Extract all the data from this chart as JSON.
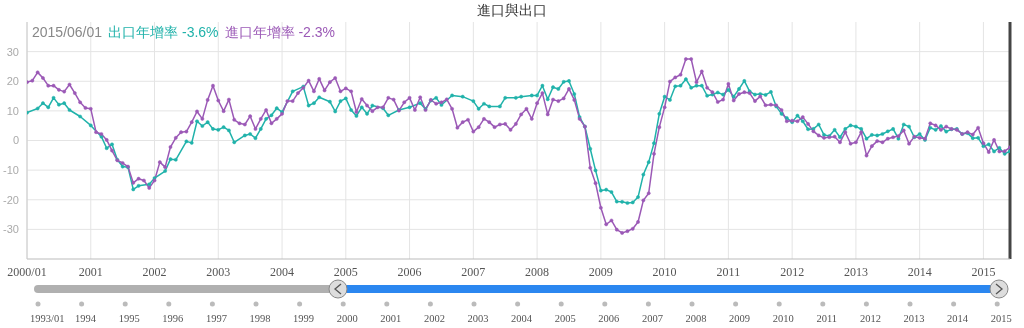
{
  "chart_data": {
    "type": "line",
    "title": "進口與出口",
    "legend_title": "2015/06/01",
    "legend": "top left",
    "grid": true,
    "marker": "circle",
    "line_style": "solid",
    "xlim": [
      "2000-01",
      "2015-06"
    ],
    "xticks": [
      {
        "value": "2000-01",
        "label": "2000/01"
      },
      {
        "value": "2001-01",
        "label": "2001"
      },
      {
        "value": "2002-01",
        "label": "2002"
      },
      {
        "value": "2003-01",
        "label": "2003"
      },
      {
        "value": "2004-01",
        "label": "2004"
      },
      {
        "value": "2005-01",
        "label": "2005"
      },
      {
        "value": "2006-01",
        "label": "2006"
      },
      {
        "value": "2007-01",
        "label": "2007"
      },
      {
        "value": "2008-01",
        "label": "2008"
      },
      {
        "value": "2009-01",
        "label": "2009"
      },
      {
        "value": "2010-01",
        "label": "2010"
      },
      {
        "value": "2011-01",
        "label": "2011"
      },
      {
        "value": "2012-01",
        "label": "2012"
      },
      {
        "value": "2013-01",
        "label": "2013"
      },
      {
        "value": "2014-01",
        "label": "2014"
      },
      {
        "value": "2015-01",
        "label": "2015"
      }
    ],
    "ylim": [
      -40,
      40
    ],
    "yticks": [
      -30,
      -20,
      -10,
      0,
      10,
      20,
      30
    ],
    "ref_lines": [
      {
        "axis": "x",
        "value": "2015-06",
        "color": "#444444"
      }
    ],
    "annotations": [
      "-3.6%",
      "-2.3%",
      "1993/01",
      "1994",
      "1995",
      "1996",
      "1997",
      "1998",
      "1999",
      "2000",
      "2001",
      "2002",
      "2003",
      "2004",
      "2005",
      "2006",
      "2007",
      "2008",
      "2009",
      "2010",
      "2011",
      "2012",
      "2013",
      "2014",
      "2015"
    ],
    "series": [
      {
        "name": "出口年增率",
        "color": "#20b2aa",
        "x": [
          "2000-01",
          "2000-03",
          "2000-04",
          "2000-05",
          "2000-06",
          "2000-07",
          "2000-08",
          "2000-09",
          "2000-11",
          "2001-01",
          "2001-03",
          "2001-04",
          "2001-05",
          "2001-06",
          "2001-07",
          "2001-08",
          "2001-09",
          "2001-10",
          "2001-12",
          "2002-01",
          "2002-03",
          "2002-04",
          "2002-05",
          "2002-07",
          "2002-08",
          "2002-09",
          "2002-10",
          "2002-11",
          "2002-12",
          "2003-01",
          "2003-02",
          "2003-03",
          "2003-04",
          "2003-06",
          "2003-07",
          "2003-08",
          "2003-09",
          "2003-10",
          "2003-11",
          "2003-12",
          "2004-01",
          "2004-03",
          "2004-05",
          "2004-06",
          "2004-07",
          "2004-08",
          "2004-10",
          "2004-11",
          "2004-12",
          "2005-01",
          "2005-02",
          "2005-03",
          "2005-04",
          "2005-05",
          "2005-06",
          "2005-08",
          "2005-09",
          "2005-11",
          "2006-01",
          "2006-03",
          "2006-04",
          "2006-05",
          "2006-06",
          "2006-07",
          "2006-09",
          "2006-11",
          "2007-01",
          "2007-02",
          "2007-03",
          "2007-04",
          "2007-06",
          "2007-07",
          "2007-09",
          "2007-10",
          "2007-12",
          "2008-01",
          "2008-02",
          "2008-03",
          "2008-04",
          "2008-05",
          "2008-06",
          "2008-07",
          "2008-08",
          "2008-09",
          "2008-10",
          "2008-11",
          "2008-12",
          "2009-01",
          "2009-02",
          "2009-03",
          "2009-04",
          "2009-05",
          "2009-06",
          "2009-07",
          "2009-08",
          "2009-09",
          "2009-10",
          "2009-11",
          "2009-12",
          "2010-01",
          "2010-02",
          "2010-03",
          "2010-04",
          "2010-05",
          "2010-06",
          "2010-07",
          "2010-08",
          "2010-09",
          "2010-10",
          "2010-11",
          "2010-12",
          "2011-01",
          "2011-02",
          "2011-03",
          "2011-04",
          "2011-05",
          "2011-06",
          "2011-07",
          "2011-08",
          "2011-09",
          "2011-10",
          "2011-11",
          "2011-12",
          "2012-01",
          "2012-02",
          "2012-03",
          "2012-04",
          "2012-05",
          "2012-06",
          "2012-07",
          "2012-08",
          "2012-09",
          "2012-10",
          "2012-11",
          "2012-12",
          "2013-01",
          "2013-02",
          "2013-03",
          "2013-04",
          "2013-05",
          "2013-06",
          "2013-07",
          "2013-08",
          "2013-09",
          "2013-10",
          "2013-11",
          "2013-12",
          "2014-01",
          "2014-02",
          "2014-03",
          "2014-04",
          "2014-05",
          "2014-06",
          "2014-07",
          "2014-08",
          "2014-09",
          "2014-10",
          "2014-11",
          "2014-12",
          "2015-01",
          "2015-02",
          "2015-03",
          "2015-04",
          "2015-05",
          "2015-06"
        ],
        "values": [
          9.4,
          10.8,
          12.6,
          11.2,
          14.4,
          12.1,
          12.6,
          10.3,
          8.1,
          5.1,
          1.3,
          -2.6,
          -1.3,
          -6.5,
          -8.8,
          -9,
          -16.5,
          -15.3,
          -14.8,
          -12.7,
          -10.3,
          -6.3,
          -6.5,
          -0.3,
          -0.8,
          6.5,
          4.9,
          6.2,
          3.9,
          3.6,
          4.5,
          3.4,
          -0.6,
          1.7,
          2.2,
          0.8,
          3.9,
          7.3,
          8.5,
          10.9,
          9.6,
          16.6,
          18.2,
          11.8,
          12.6,
          14.6,
          13.1,
          9.8,
          13.3,
          14.2,
          10.3,
          8.3,
          11.2,
          9,
          11.8,
          10.9,
          8.5,
          10.3,
          11.2,
          12.6,
          10.6,
          13.5,
          14.4,
          12,
          15.2,
          14.8,
          13.3,
          10.7,
          12.4,
          11.5,
          11.5,
          14.4,
          14.4,
          14.8,
          15.2,
          15.2,
          18.5,
          13.9,
          18,
          17.4,
          19.8,
          20.1,
          15.7,
          7.9,
          4.7,
          -2.8,
          -10.1,
          -16.9,
          -16.6,
          -17.4,
          -20.6,
          -20.7,
          -21.1,
          -20.9,
          -19.1,
          -11.5,
          -7.3,
          -0.9,
          9,
          14.8,
          13.7,
          18.3,
          18.5,
          20.7,
          17.8,
          18.5,
          18.5,
          15.1,
          15.5,
          16.2,
          15.5,
          17.1,
          14.8,
          17.4,
          20.1,
          16.6,
          15.5,
          15.7,
          15.4,
          16.4,
          11.5,
          9,
          7.6,
          6.2,
          8.4,
          6.5,
          3.8,
          3.9,
          5.4,
          1.9,
          1.5,
          3.6,
          1.1,
          3.9,
          5.1,
          4.7,
          3.9,
          0.6,
          1.9,
          1.7,
          2.2,
          3.1,
          3.9,
          0.6,
          5.4,
          4.7,
          1.1,
          2.2,
          0.2,
          4.3,
          3.6,
          4.9,
          3,
          3.8,
          3.9,
          2.2,
          2.5,
          0.8,
          0.9,
          -1.9,
          -1.3,
          -3.7,
          -2.5,
          -4.5,
          -3.6
        ]
      },
      {
        "name": "進口年增率",
        "color": "#9b59b6",
        "x": [
          "2000-01",
          "2000-02",
          "2000-03",
          "2000-04",
          "2000-05",
          "2000-06",
          "2000-07",
          "2000-08",
          "2000-09",
          "2000-10",
          "2000-11",
          "2000-12",
          "2001-01",
          "2001-02",
          "2001-03",
          "2001-04",
          "2001-05",
          "2001-06",
          "2001-07",
          "2001-08",
          "2001-09",
          "2001-10",
          "2001-11",
          "2001-12",
          "2002-01",
          "2002-02",
          "2002-03",
          "2002-04",
          "2002-05",
          "2002-06",
          "2002-07",
          "2002-08",
          "2002-09",
          "2002-10",
          "2002-11",
          "2002-12",
          "2003-01",
          "2003-02",
          "2003-03",
          "2003-04",
          "2003-05",
          "2003-06",
          "2003-07",
          "2003-08",
          "2003-09",
          "2003-10",
          "2003-11",
          "2003-12",
          "2004-01",
          "2004-02",
          "2004-03",
          "2004-04",
          "2004-05",
          "2004-06",
          "2004-07",
          "2004-08",
          "2004-09",
          "2004-10",
          "2004-11",
          "2004-12",
          "2005-01",
          "2005-02",
          "2005-03",
          "2005-04",
          "2005-05",
          "2005-06",
          "2005-07",
          "2005-08",
          "2005-09",
          "2005-10",
          "2005-11",
          "2005-12",
          "2006-01",
          "2006-02",
          "2006-03",
          "2006-04",
          "2006-05",
          "2006-06",
          "2006-07",
          "2006-08",
          "2006-09",
          "2006-10",
          "2006-11",
          "2006-12",
          "2007-01",
          "2007-02",
          "2007-03",
          "2007-04",
          "2007-05",
          "2007-06",
          "2007-07",
          "2007-08",
          "2007-09",
          "2007-10",
          "2007-11",
          "2007-12",
          "2008-01",
          "2008-02",
          "2008-03",
          "2008-04",
          "2008-05",
          "2008-06",
          "2008-07",
          "2008-08",
          "2008-09",
          "2008-10",
          "2008-11",
          "2008-12",
          "2009-01",
          "2009-02",
          "2009-03",
          "2009-04",
          "2009-05",
          "2009-06",
          "2009-07",
          "2009-08",
          "2009-09",
          "2009-10",
          "2009-11",
          "2009-12",
          "2010-01",
          "2010-02",
          "2010-03",
          "2010-04",
          "2010-05",
          "2010-06",
          "2010-07",
          "2010-08",
          "2010-09",
          "2010-10",
          "2010-11",
          "2010-12",
          "2011-01",
          "2011-02",
          "2011-03",
          "2011-04",
          "2011-05",
          "2011-06",
          "2011-07",
          "2011-08",
          "2011-09",
          "2011-10",
          "2011-11",
          "2011-12",
          "2012-01",
          "2012-02",
          "2012-03",
          "2012-04",
          "2012-05",
          "2012-06",
          "2012-07",
          "2012-08",
          "2012-09",
          "2012-10",
          "2012-11",
          "2012-12",
          "2013-01",
          "2013-02",
          "2013-03",
          "2013-04",
          "2013-05",
          "2013-06",
          "2013-07",
          "2013-08",
          "2013-09",
          "2013-10",
          "2013-11",
          "2013-12",
          "2014-01",
          "2014-02",
          "2014-03",
          "2014-04",
          "2014-05",
          "2014-06",
          "2014-07",
          "2014-08",
          "2014-09",
          "2014-10",
          "2014-11",
          "2014-12",
          "2015-01",
          "2015-02",
          "2015-03",
          "2015-04",
          "2015-05",
          "2015-06"
        ],
        "values": [
          19.7,
          20.2,
          23,
          21.1,
          18.5,
          18.5,
          17.1,
          16.5,
          18.9,
          16,
          12.9,
          11,
          10.7,
          2.8,
          2.2,
          0.2,
          -3.4,
          -6.7,
          -7.6,
          -8.8,
          -14.3,
          -12.9,
          -13.5,
          -16,
          -13.5,
          -7.3,
          -9,
          -2.2,
          0.9,
          2.8,
          3,
          6.2,
          9.8,
          7.3,
          13.7,
          18.5,
          13.5,
          9.9,
          13.8,
          7,
          5.8,
          5.4,
          8.2,
          3.9,
          7.3,
          10.3,
          5.8,
          7.3,
          9,
          13.3,
          13.3,
          16,
          17.8,
          20.2,
          16.6,
          20.8,
          16.9,
          19.7,
          21.1,
          16.6,
          17.6,
          16.6,
          9.6,
          14,
          11.8,
          9.9,
          11.2,
          11.2,
          14.4,
          13.8,
          10.1,
          12.9,
          14.4,
          10.3,
          14.6,
          10.3,
          13.7,
          12.4,
          12.9,
          13.9,
          10.7,
          4.3,
          6.2,
          7,
          3,
          4.5,
          7.3,
          6.2,
          4.5,
          5.4,
          5.6,
          3.6,
          5.6,
          8.8,
          10.7,
          7.3,
          12.6,
          16,
          8.8,
          13.8,
          13.3,
          14.2,
          17.4,
          13.7,
          7.3,
          4.7,
          -9.2,
          -14.4,
          -22.7,
          -28.3,
          -27,
          -30.1,
          -31.2,
          -30.6,
          -29.8,
          -27.5,
          -20.2,
          -17.8,
          -4.5,
          4.5,
          11.2,
          19.9,
          21.3,
          22.2,
          27.5,
          27.5,
          19.7,
          23.3,
          17.8,
          16.3,
          13,
          13.8,
          19.1,
          13.5,
          15.7,
          16.3,
          16,
          13.3,
          14.9,
          11.9,
          12.1,
          11.9,
          10.3,
          6.5,
          6.7,
          6.5,
          7.9,
          5.6,
          3.1,
          1.7,
          0.9,
          1.1,
          1.3,
          -0.6,
          2.8,
          -1.1,
          -0.6,
          2.8,
          -5.1,
          -1.9,
          -0.2,
          -0.6,
          0.6,
          1.1,
          1.5,
          3.4,
          -1.1,
          1.3,
          0.9,
          0.6,
          5.8,
          5.1,
          3.6,
          4.7,
          3.9,
          3.6,
          2.2,
          2.8,
          2,
          4.3,
          -0.9,
          -3.9,
          0.2,
          -3.7,
          -3.6,
          -2.3
        ]
      }
    ]
  }
}
